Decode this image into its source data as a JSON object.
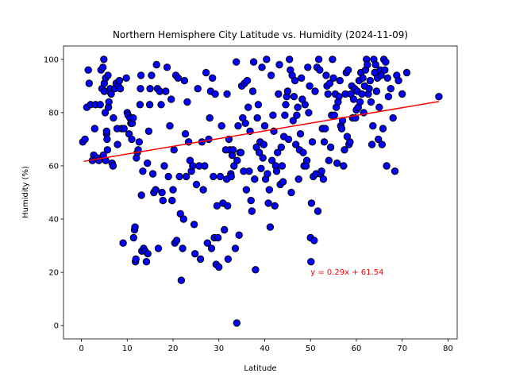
{
  "chart_data": {
    "type": "scatter",
    "title": "Northern Hemisphere City Latitude vs. Humidity (2024-11-09)",
    "xlabel": "Latitude",
    "ylabel": "Humidity (%)",
    "xlim": [
      -3.9,
      82
    ],
    "ylim": [
      -5,
      105
    ],
    "x_ticks": [
      0,
      10,
      20,
      30,
      40,
      50,
      60,
      70,
      80
    ],
    "y_ticks": [
      0,
      20,
      40,
      60,
      80,
      100
    ],
    "grid": false,
    "marker_fill": "#0000ff",
    "marker_edge": "#000000",
    "regression": {
      "slope": 0.29,
      "intercept": 61.54,
      "x_range": [
        0.5,
        78
      ],
      "color": "#ff0000",
      "label": "y = 0.29x + 61.54",
      "label_at": [
        50,
        20
      ]
    },
    "points": [
      [
        0.3,
        69
      ],
      [
        0.8,
        70
      ],
      [
        1.2,
        82
      ],
      [
        1.5,
        96
      ],
      [
        1.7,
        91
      ],
      [
        2.0,
        83
      ],
      [
        2.4,
        62
      ],
      [
        2.7,
        64
      ],
      [
        2.9,
        74
      ],
      [
        3.1,
        83
      ],
      [
        3.4,
        63
      ],
      [
        3.8,
        62
      ],
      [
        4.1,
        83
      ],
      [
        4.3,
        96
      ],
      [
        4.5,
        89
      ],
      [
        4.7,
        97
      ],
      [
        4.8,
        64
      ],
      [
        4.9,
        100
      ],
      [
        5.0,
        88
      ],
      [
        5.0,
        91
      ],
      [
        5.2,
        80
      ],
      [
        5.3,
        93
      ],
      [
        5.3,
        62
      ],
      [
        5.5,
        72
      ],
      [
        5.5,
        73
      ],
      [
        5.6,
        70
      ],
      [
        5.7,
        66
      ],
      [
        5.8,
        94
      ],
      [
        5.9,
        82
      ],
      [
        6.0,
        84
      ],
      [
        6.1,
        88
      ],
      [
        6.3,
        89
      ],
      [
        6.5,
        87
      ],
      [
        6.7,
        61
      ],
      [
        6.9,
        60
      ],
      [
        7.0,
        78
      ],
      [
        7.3,
        89
      ],
      [
        7.6,
        91
      ],
      [
        7.8,
        74
      ],
      [
        7.9,
        68
      ],
      [
        8.1,
        90
      ],
      [
        8.3,
        92
      ],
      [
        8.5,
        89
      ],
      [
        8.8,
        74
      ],
      [
        9.1,
        31
      ],
      [
        9.3,
        74
      ],
      [
        9.8,
        93
      ],
      [
        10.0,
        80
      ],
      [
        10.2,
        79
      ],
      [
        10.4,
        72
      ],
      [
        10.6,
        78
      ],
      [
        10.8,
        76
      ],
      [
        11.0,
        70
      ],
      [
        11.1,
        76
      ],
      [
        11.3,
        78
      ],
      [
        11.4,
        33
      ],
      [
        11.6,
        36
      ],
      [
        11.7,
        37
      ],
      [
        11.8,
        24
      ],
      [
        11.9,
        25
      ],
      [
        12.0,
        63
      ],
      [
        12.2,
        65
      ],
      [
        12.4,
        66
      ],
      [
        12.6,
        69
      ],
      [
        12.8,
        83
      ],
      [
        12.9,
        89
      ],
      [
        13.0,
        94
      ],
      [
        13.1,
        49
      ],
      [
        13.2,
        28
      ],
      [
        13.4,
        58
      ],
      [
        13.6,
        29
      ],
      [
        13.9,
        28
      ],
      [
        14.2,
        24
      ],
      [
        14.4,
        61
      ],
      [
        14.5,
        27
      ],
      [
        14.7,
        73
      ],
      [
        14.9,
        83
      ],
      [
        15.0,
        89
      ],
      [
        15.3,
        94
      ],
      [
        15.6,
        57
      ],
      [
        15.8,
        50
      ],
      [
        16.2,
        51
      ],
      [
        16.4,
        98
      ],
      [
        16.6,
        89
      ],
      [
        16.8,
        29
      ],
      [
        17.1,
        88
      ],
      [
        17.4,
        83
      ],
      [
        17.6,
        50
      ],
      [
        17.8,
        47
      ],
      [
        18.1,
        60
      ],
      [
        18.4,
        88
      ],
      [
        18.7,
        97
      ],
      [
        19.0,
        56
      ],
      [
        19.3,
        75
      ],
      [
        19.6,
        85
      ],
      [
        19.8,
        47
      ],
      [
        20.0,
        51
      ],
      [
        20.2,
        66
      ],
      [
        20.4,
        31
      ],
      [
        20.6,
        94
      ],
      [
        20.8,
        32
      ],
      [
        21.1,
        93
      ],
      [
        21.4,
        56
      ],
      [
        21.6,
        42
      ],
      [
        21.8,
        17
      ],
      [
        22.1,
        29
      ],
      [
        22.3,
        40
      ],
      [
        22.5,
        92
      ],
      [
        22.7,
        72
      ],
      [
        22.9,
        56
      ],
      [
        23.1,
        84
      ],
      [
        23.4,
        69
      ],
      [
        23.7,
        62
      ],
      [
        24.0,
        58
      ],
      [
        24.3,
        60
      ],
      [
        24.6,
        38
      ],
      [
        24.8,
        27
      ],
      [
        25.1,
        53
      ],
      [
        25.4,
        89
      ],
      [
        25.7,
        60
      ],
      [
        26.0,
        25
      ],
      [
        26.3,
        69
      ],
      [
        26.6,
        51
      ],
      [
        26.9,
        60
      ],
      [
        27.2,
        95
      ],
      [
        27.5,
        31
      ],
      [
        27.8,
        70
      ],
      [
        28.0,
        78
      ],
      [
        28.2,
        88
      ],
      [
        28.4,
        29
      ],
      [
        28.6,
        93
      ],
      [
        28.8,
        56
      ],
      [
        29.0,
        33
      ],
      [
        29.2,
        87
      ],
      [
        29.4,
        23
      ],
      [
        29.6,
        45
      ],
      [
        29.8,
        33
      ],
      [
        30.0,
        22
      ],
      [
        30.3,
        56
      ],
      [
        30.6,
        75
      ],
      [
        30.9,
        46
      ],
      [
        31.2,
        36
      ],
      [
        31.5,
        66
      ],
      [
        31.7,
        55
      ],
      [
        31.8,
        87
      ],
      [
        31.9,
        45
      ],
      [
        32.0,
        25
      ],
      [
        32.2,
        70
      ],
      [
        32.4,
        66
      ],
      [
        32.6,
        57
      ],
      [
        32.7,
        56
      ],
      [
        32.9,
        64
      ],
      [
        33.1,
        66
      ],
      [
        33.3,
        60
      ],
      [
        33.6,
        29
      ],
      [
        33.8,
        99
      ],
      [
        33.9,
        1
      ],
      [
        34.0,
        62
      ],
      [
        34.2,
        75
      ],
      [
        34.4,
        34
      ],
      [
        34.6,
        65
      ],
      [
        34.8,
        65
      ],
      [
        35.0,
        90
      ],
      [
        35.2,
        78
      ],
      [
        35.4,
        58
      ],
      [
        35.6,
        91
      ],
      [
        35.8,
        76
      ],
      [
        36.0,
        51
      ],
      [
        36.2,
        92
      ],
      [
        36.4,
        82
      ],
      [
        36.6,
        58
      ],
      [
        36.8,
        73
      ],
      [
        37.0,
        47
      ],
      [
        37.2,
        43
      ],
      [
        37.4,
        88
      ],
      [
        37.6,
        99
      ],
      [
        37.8,
        55
      ],
      [
        38.0,
        21
      ],
      [
        38.2,
        67
      ],
      [
        38.4,
        78
      ],
      [
        38.6,
        83
      ],
      [
        38.8,
        65
      ],
      [
        39.0,
        69
      ],
      [
        39.2,
        59
      ],
      [
        39.4,
        97
      ],
      [
        39.6,
        63
      ],
      [
        39.8,
        68
      ],
      [
        40.0,
        75
      ],
      [
        40.2,
        55
      ],
      [
        40.4,
        100
      ],
      [
        40.6,
        57
      ],
      [
        40.8,
        46
      ],
      [
        41.0,
        51
      ],
      [
        41.2,
        37
      ],
      [
        41.4,
        94
      ],
      [
        41.6,
        62
      ],
      [
        41.8,
        79
      ],
      [
        42.0,
        73
      ],
      [
        42.2,
        45
      ],
      [
        42.4,
        60
      ],
      [
        42.6,
        58
      ],
      [
        42.8,
        65
      ],
      [
        43.0,
        87
      ],
      [
        43.2,
        98
      ],
      [
        43.4,
        53
      ],
      [
        43.6,
        67
      ],
      [
        43.8,
        60
      ],
      [
        44.0,
        54
      ],
      [
        44.2,
        71
      ],
      [
        44.4,
        79
      ],
      [
        44.6,
        83
      ],
      [
        44.8,
        86
      ],
      [
        45.0,
        88
      ],
      [
        45.2,
        70
      ],
      [
        45.4,
        100
      ],
      [
        45.6,
        96
      ],
      [
        45.8,
        50
      ],
      [
        46.0,
        94
      ],
      [
        46.2,
        77
      ],
      [
        46.4,
        86
      ],
      [
        46.6,
        92
      ],
      [
        46.8,
        68
      ],
      [
        47.0,
        79
      ],
      [
        47.2,
        82
      ],
      [
        47.4,
        55
      ],
      [
        47.6,
        66
      ],
      [
        47.8,
        72
      ],
      [
        48.0,
        93
      ],
      [
        48.2,
        85
      ],
      [
        48.4,
        65
      ],
      [
        48.6,
        60
      ],
      [
        48.8,
        83
      ],
      [
        49.0,
        60
      ],
      [
        49.2,
        62
      ],
      [
        49.4,
        97
      ],
      [
        49.6,
        80
      ],
      [
        49.8,
        90
      ],
      [
        50.0,
        33
      ],
      [
        50.1,
        24
      ],
      [
        50.2,
        46
      ],
      [
        50.4,
        69
      ],
      [
        50.6,
        56
      ],
      [
        50.8,
        32
      ],
      [
        51.0,
        88
      ],
      [
        51.2,
        57
      ],
      [
        51.4,
        97
      ],
      [
        51.6,
        43
      ],
      [
        51.8,
        100
      ],
      [
        52.0,
        96
      ],
      [
        52.2,
        57
      ],
      [
        52.4,
        58
      ],
      [
        52.6,
        74
      ],
      [
        52.8,
        55
      ],
      [
        53.0,
        69
      ],
      [
        53.2,
        74
      ],
      [
        53.4,
        94
      ],
      [
        53.6,
        90
      ],
      [
        53.8,
        87
      ],
      [
        54.0,
        62
      ],
      [
        54.2,
        91
      ],
      [
        54.4,
        67
      ],
      [
        54.6,
        79
      ],
      [
        54.8,
        100
      ],
      [
        55.0,
        93
      ],
      [
        55.2,
        79
      ],
      [
        55.4,
        87
      ],
      [
        55.6,
        82
      ],
      [
        55.8,
        61
      ],
      [
        56.0,
        84
      ],
      [
        56.2,
        86
      ],
      [
        56.4,
        92
      ],
      [
        56.6,
        75
      ],
      [
        56.8,
        74
      ],
      [
        57.0,
        77
      ],
      [
        57.2,
        60
      ],
      [
        57.4,
        66
      ],
      [
        57.6,
        87
      ],
      [
        57.8,
        95
      ],
      [
        58.0,
        71
      ],
      [
        58.2,
        96
      ],
      [
        58.4,
        68
      ],
      [
        58.6,
        69
      ],
      [
        58.8,
        87
      ],
      [
        59.0,
        90
      ],
      [
        59.2,
        78
      ],
      [
        59.4,
        85
      ],
      [
        59.6,
        89
      ],
      [
        59.8,
        78
      ],
      [
        60.0,
        81
      ],
      [
        60.2,
        88
      ],
      [
        60.4,
        82
      ],
      [
        60.6,
        92
      ],
      [
        60.8,
        84
      ],
      [
        61.0,
        95
      ],
      [
        61.2,
        87
      ],
      [
        61.4,
        93
      ],
      [
        61.6,
        80
      ],
      [
        61.8,
        90
      ],
      [
        62.0,
        96
      ],
      [
        62.2,
        100
      ],
      [
        62.4,
        98
      ],
      [
        62.6,
        87
      ],
      [
        62.8,
        89
      ],
      [
        63.0,
        92
      ],
      [
        63.2,
        84
      ],
      [
        63.4,
        68
      ],
      [
        63.6,
        75
      ],
      [
        63.8,
        100
      ],
      [
        64.0,
        95
      ],
      [
        64.2,
        98
      ],
      [
        64.4,
        88
      ],
      [
        64.6,
        93
      ],
      [
        64.8,
        70
      ],
      [
        65.0,
        82
      ],
      [
        65.2,
        96
      ],
      [
        65.4,
        94
      ],
      [
        65.6,
        68
      ],
      [
        65.8,
        74
      ],
      [
        66.0,
        100
      ],
      [
        66.2,
        96
      ],
      [
        66.4,
        99
      ],
      [
        66.6,
        60
      ],
      [
        66.8,
        93
      ],
      [
        67.0,
        86
      ],
      [
        67.5,
        89
      ],
      [
        68.0,
        78
      ],
      [
        68.4,
        58
      ],
      [
        68.8,
        94
      ],
      [
        69.2,
        92
      ],
      [
        70.0,
        87
      ],
      [
        71.0,
        95
      ],
      [
        78.0,
        86
      ]
    ]
  }
}
